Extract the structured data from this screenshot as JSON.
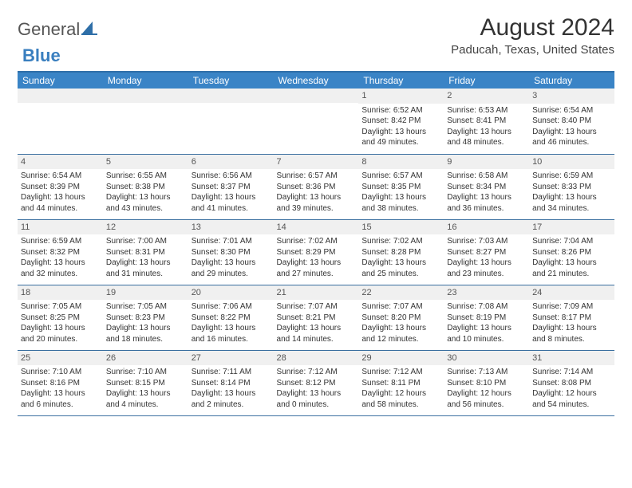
{
  "logo": {
    "text1": "General",
    "text2": "Blue",
    "sail_color": "#2f6fa8"
  },
  "title": "August 2024",
  "subtitle": "Paducah, Texas, United States",
  "header_bg": "#3a84c6",
  "header_text_color": "#ffffff",
  "rule_color": "#2f6fa8",
  "daynum_bg": "#f0f0f0",
  "body_font_size": 10,
  "days": [
    "Sunday",
    "Monday",
    "Tuesday",
    "Wednesday",
    "Thursday",
    "Friday",
    "Saturday"
  ],
  "weeks": [
    [
      {},
      {},
      {},
      {},
      {
        "n": "1",
        "sr": "6:52 AM",
        "ss": "8:42 PM",
        "d1": "13 hours",
        "d2": "49 minutes"
      },
      {
        "n": "2",
        "sr": "6:53 AM",
        "ss": "8:41 PM",
        "d1": "13 hours",
        "d2": "48 minutes"
      },
      {
        "n": "3",
        "sr": "6:54 AM",
        "ss": "8:40 PM",
        "d1": "13 hours",
        "d2": "46 minutes"
      }
    ],
    [
      {
        "n": "4",
        "sr": "6:54 AM",
        "ss": "8:39 PM",
        "d1": "13 hours",
        "d2": "44 minutes"
      },
      {
        "n": "5",
        "sr": "6:55 AM",
        "ss": "8:38 PM",
        "d1": "13 hours",
        "d2": "43 minutes"
      },
      {
        "n": "6",
        "sr": "6:56 AM",
        "ss": "8:37 PM",
        "d1": "13 hours",
        "d2": "41 minutes"
      },
      {
        "n": "7",
        "sr": "6:57 AM",
        "ss": "8:36 PM",
        "d1": "13 hours",
        "d2": "39 minutes"
      },
      {
        "n": "8",
        "sr": "6:57 AM",
        "ss": "8:35 PM",
        "d1": "13 hours",
        "d2": "38 minutes"
      },
      {
        "n": "9",
        "sr": "6:58 AM",
        "ss": "8:34 PM",
        "d1": "13 hours",
        "d2": "36 minutes"
      },
      {
        "n": "10",
        "sr": "6:59 AM",
        "ss": "8:33 PM",
        "d1": "13 hours",
        "d2": "34 minutes"
      }
    ],
    [
      {
        "n": "11",
        "sr": "6:59 AM",
        "ss": "8:32 PM",
        "d1": "13 hours",
        "d2": "32 minutes"
      },
      {
        "n": "12",
        "sr": "7:00 AM",
        "ss": "8:31 PM",
        "d1": "13 hours",
        "d2": "31 minutes"
      },
      {
        "n": "13",
        "sr": "7:01 AM",
        "ss": "8:30 PM",
        "d1": "13 hours",
        "d2": "29 minutes"
      },
      {
        "n": "14",
        "sr": "7:02 AM",
        "ss": "8:29 PM",
        "d1": "13 hours",
        "d2": "27 minutes"
      },
      {
        "n": "15",
        "sr": "7:02 AM",
        "ss": "8:28 PM",
        "d1": "13 hours",
        "d2": "25 minutes"
      },
      {
        "n": "16",
        "sr": "7:03 AM",
        "ss": "8:27 PM",
        "d1": "13 hours",
        "d2": "23 minutes"
      },
      {
        "n": "17",
        "sr": "7:04 AM",
        "ss": "8:26 PM",
        "d1": "13 hours",
        "d2": "21 minutes"
      }
    ],
    [
      {
        "n": "18",
        "sr": "7:05 AM",
        "ss": "8:25 PM",
        "d1": "13 hours",
        "d2": "20 minutes"
      },
      {
        "n": "19",
        "sr": "7:05 AM",
        "ss": "8:23 PM",
        "d1": "13 hours",
        "d2": "18 minutes"
      },
      {
        "n": "20",
        "sr": "7:06 AM",
        "ss": "8:22 PM",
        "d1": "13 hours",
        "d2": "16 minutes"
      },
      {
        "n": "21",
        "sr": "7:07 AM",
        "ss": "8:21 PM",
        "d1": "13 hours",
        "d2": "14 minutes"
      },
      {
        "n": "22",
        "sr": "7:07 AM",
        "ss": "8:20 PM",
        "d1": "13 hours",
        "d2": "12 minutes"
      },
      {
        "n": "23",
        "sr": "7:08 AM",
        "ss": "8:19 PM",
        "d1": "13 hours",
        "d2": "10 minutes"
      },
      {
        "n": "24",
        "sr": "7:09 AM",
        "ss": "8:17 PM",
        "d1": "13 hours",
        "d2": "8 minutes"
      }
    ],
    [
      {
        "n": "25",
        "sr": "7:10 AM",
        "ss": "8:16 PM",
        "d1": "13 hours",
        "d2": "6 minutes"
      },
      {
        "n": "26",
        "sr": "7:10 AM",
        "ss": "8:15 PM",
        "d1": "13 hours",
        "d2": "4 minutes"
      },
      {
        "n": "27",
        "sr": "7:11 AM",
        "ss": "8:14 PM",
        "d1": "13 hours",
        "d2": "2 minutes"
      },
      {
        "n": "28",
        "sr": "7:12 AM",
        "ss": "8:12 PM",
        "d1": "13 hours",
        "d2": "0 minutes"
      },
      {
        "n": "29",
        "sr": "7:12 AM",
        "ss": "8:11 PM",
        "d1": "12 hours",
        "d2": "58 minutes"
      },
      {
        "n": "30",
        "sr": "7:13 AM",
        "ss": "8:10 PM",
        "d1": "12 hours",
        "d2": "56 minutes"
      },
      {
        "n": "31",
        "sr": "7:14 AM",
        "ss": "8:08 PM",
        "d1": "12 hours",
        "d2": "54 minutes"
      }
    ]
  ],
  "labels": {
    "sunrise": "Sunrise: ",
    "sunset": "Sunset: ",
    "daylight": "Daylight: ",
    "and": "and "
  }
}
